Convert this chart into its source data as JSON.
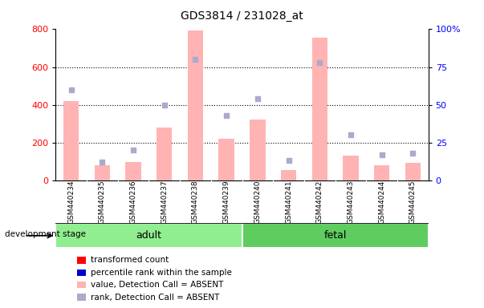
{
  "title": "GDS3814 / 231028_at",
  "samples": [
    "GSM440234",
    "GSM440235",
    "GSM440236",
    "GSM440237",
    "GSM440238",
    "GSM440239",
    "GSM440240",
    "GSM440241",
    "GSM440242",
    "GSM440243",
    "GSM440244",
    "GSM440245"
  ],
  "absent_value": [
    420,
    80,
    95,
    280,
    795,
    220,
    320,
    55,
    755,
    130,
    80,
    90
  ],
  "absent_rank": [
    60,
    12,
    20,
    50,
    80,
    43,
    54,
    13,
    78,
    30,
    17,
    18
  ],
  "groups": [
    {
      "label": "adult",
      "start": 0,
      "end": 5,
      "color": "#90EE90"
    },
    {
      "label": "fetal",
      "start": 6,
      "end": 11,
      "color": "#5ECC5E"
    }
  ],
  "ylim_left": [
    0,
    800
  ],
  "ylim_right": [
    0,
    100
  ],
  "yticks_left": [
    0,
    200,
    400,
    600,
    800
  ],
  "yticks_right": [
    0,
    25,
    50,
    75,
    100
  ],
  "bar_color_absent": "#FFB3B3",
  "dot_color_absent": "#AAAACC",
  "bar_width": 0.5,
  "ylabel_left_color": "#FF0000",
  "ylabel_right_color": "#0000FF",
  "dev_stage_label": "development stage",
  "legend_items": [
    {
      "label": "transformed count",
      "color": "#FF0000"
    },
    {
      "label": "percentile rank within the sample",
      "color": "#0000CC"
    },
    {
      "label": "value, Detection Call = ABSENT",
      "color": "#FFB3B3"
    },
    {
      "label": "rank, Detection Call = ABSENT",
      "color": "#AAAACC"
    }
  ],
  "grid_dotted_at": [
    200,
    400,
    600
  ],
  "gray_label_color": "#BBBBBB",
  "sample_label_bg": "#CCCCCC"
}
